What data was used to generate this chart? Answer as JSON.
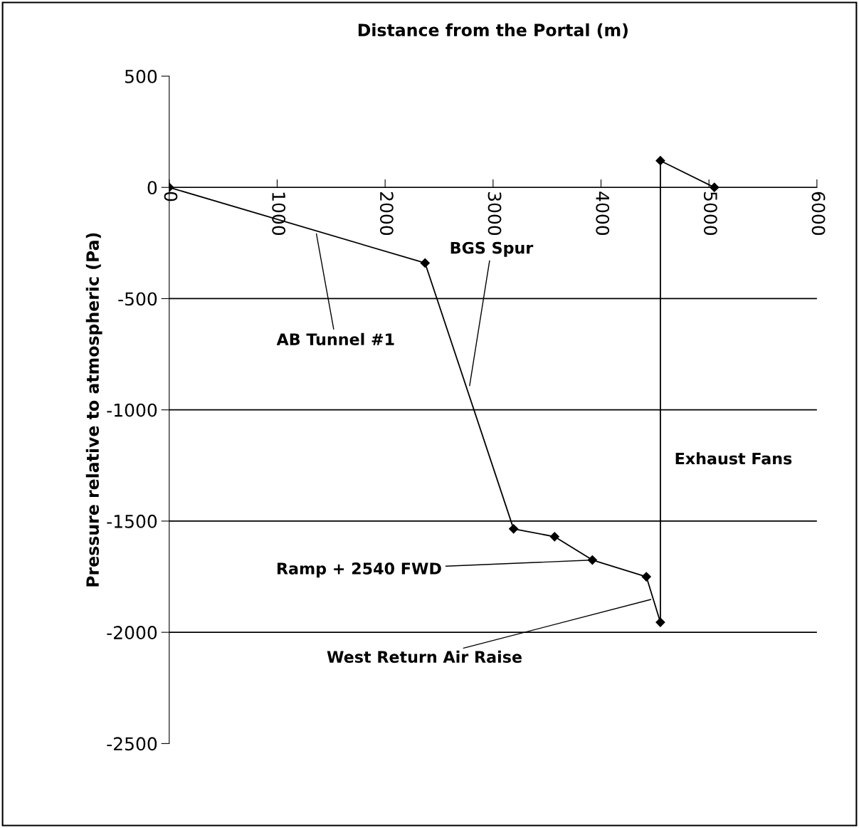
{
  "chart_data": {
    "type": "line",
    "xlabel": "Distance from the Portal (m)",
    "ylabel": "Pressure relative to atmospheric (Pa)",
    "x": [
      0,
      2370,
      3190,
      3570,
      3920,
      4420,
      4550,
      4550,
      5050
    ],
    "series": [
      {
        "color": "#000000",
        "values": [
          0,
          -340,
          -1535,
          -1570,
          -1675,
          -1750,
          -1955,
          120,
          0
        ]
      }
    ],
    "xlim": [
      0,
      6000
    ],
    "xticks": [
      0,
      1000,
      2000,
      3000,
      4000,
      5000,
      6000
    ],
    "ylim": [
      -2500,
      500
    ],
    "yticks": [
      -2500,
      -2000,
      -1500,
      -1000,
      -500,
      0,
      500
    ],
    "grid": "y",
    "marker": "diamond",
    "line_style": "solid",
    "legend": false,
    "annotations": [
      {
        "text": "AB Tunnel #1",
        "x": 1360,
        "y": -200
      },
      {
        "text": "BGS Spur",
        "x": 2780,
        "y": -900
      },
      "Exhaust Fans",
      {
        "text": "Ramp + 2540 FWD",
        "x": 3920,
        "y": -1675
      },
      {
        "text": "West Return Air Raise",
        "x": 4480,
        "y": -1850
      }
    ]
  }
}
